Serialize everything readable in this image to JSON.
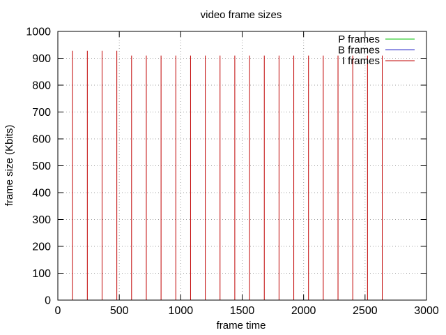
{
  "chart_data": {
    "type": "bar",
    "title": "video frame sizes",
    "xlabel": "frame time",
    "ylabel": "frame size (Kbits)",
    "xlim": [
      0,
      3000
    ],
    "ylim": [
      0,
      1000
    ],
    "x_ticks": [
      "0",
      "500",
      "1000",
      "1500",
      "2000",
      "2500",
      "3000"
    ],
    "y_ticks": [
      "0",
      "100",
      "200",
      "300",
      "400",
      "500",
      "600",
      "700",
      "800",
      "900",
      "1000"
    ],
    "grid": true,
    "legend_position": "top-right",
    "series": [
      {
        "name": "P frames",
        "color": "#00c000",
        "x": [],
        "values": []
      },
      {
        "name": "B frames",
        "color": "#0000c0",
        "x": [],
        "values": []
      },
      {
        "name": "I frames",
        "color": "#c00000",
        "x": [
          120,
          240,
          360,
          480,
          600,
          720,
          840,
          960,
          1080,
          1200,
          1320,
          1440,
          1560,
          1680,
          1800,
          1920,
          2040,
          2160,
          2280,
          2400,
          2520,
          2640
        ],
        "values": [
          928,
          928,
          928,
          928,
          910,
          910,
          910,
          910,
          910,
          910,
          910,
          910,
          910,
          910,
          910,
          910,
          910,
          910,
          910,
          910,
          910,
          910
        ]
      }
    ]
  }
}
